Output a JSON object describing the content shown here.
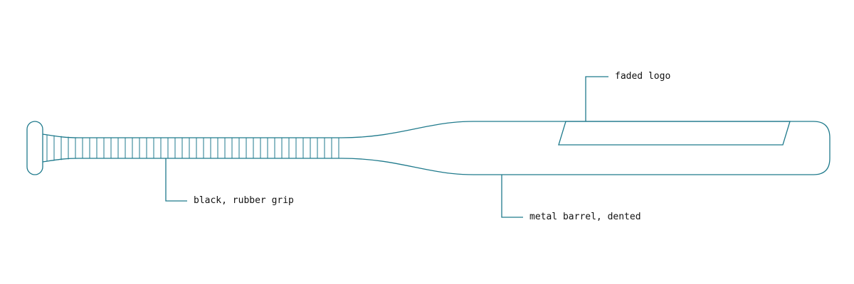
{
  "colors": {
    "line": "#1f7a8c",
    "text": "#111111",
    "background": "#ffffff"
  },
  "diagram": {
    "subject": "bat-icon",
    "labels": {
      "logo": "faded logo",
      "grip": "black, rubber grip",
      "barrel": "metal barrel, dented"
    }
  }
}
